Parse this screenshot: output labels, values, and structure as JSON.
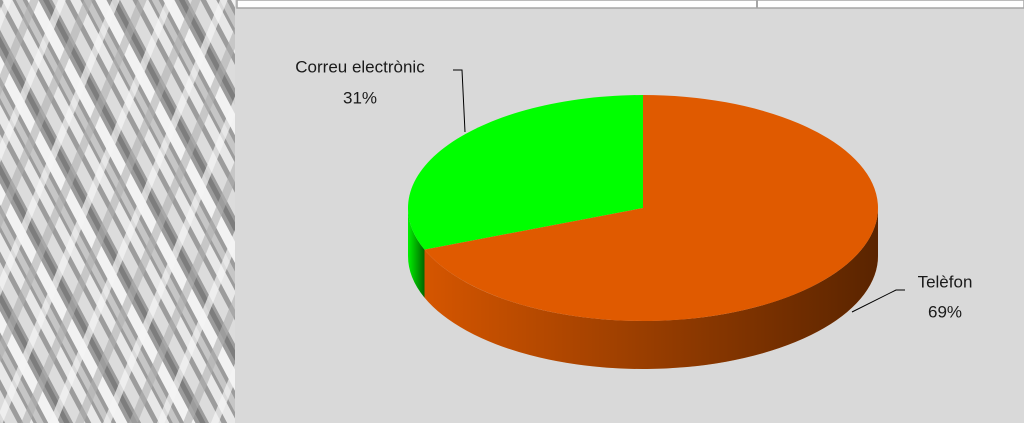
{
  "chart_data": {
    "type": "pie",
    "categories": [
      "Correu electrònic",
      "Telèfon"
    ],
    "values": [
      31,
      69
    ],
    "value_labels": [
      "31%",
      "69%"
    ],
    "colors": [
      "#00ff00",
      "#e05a00"
    ]
  }
}
